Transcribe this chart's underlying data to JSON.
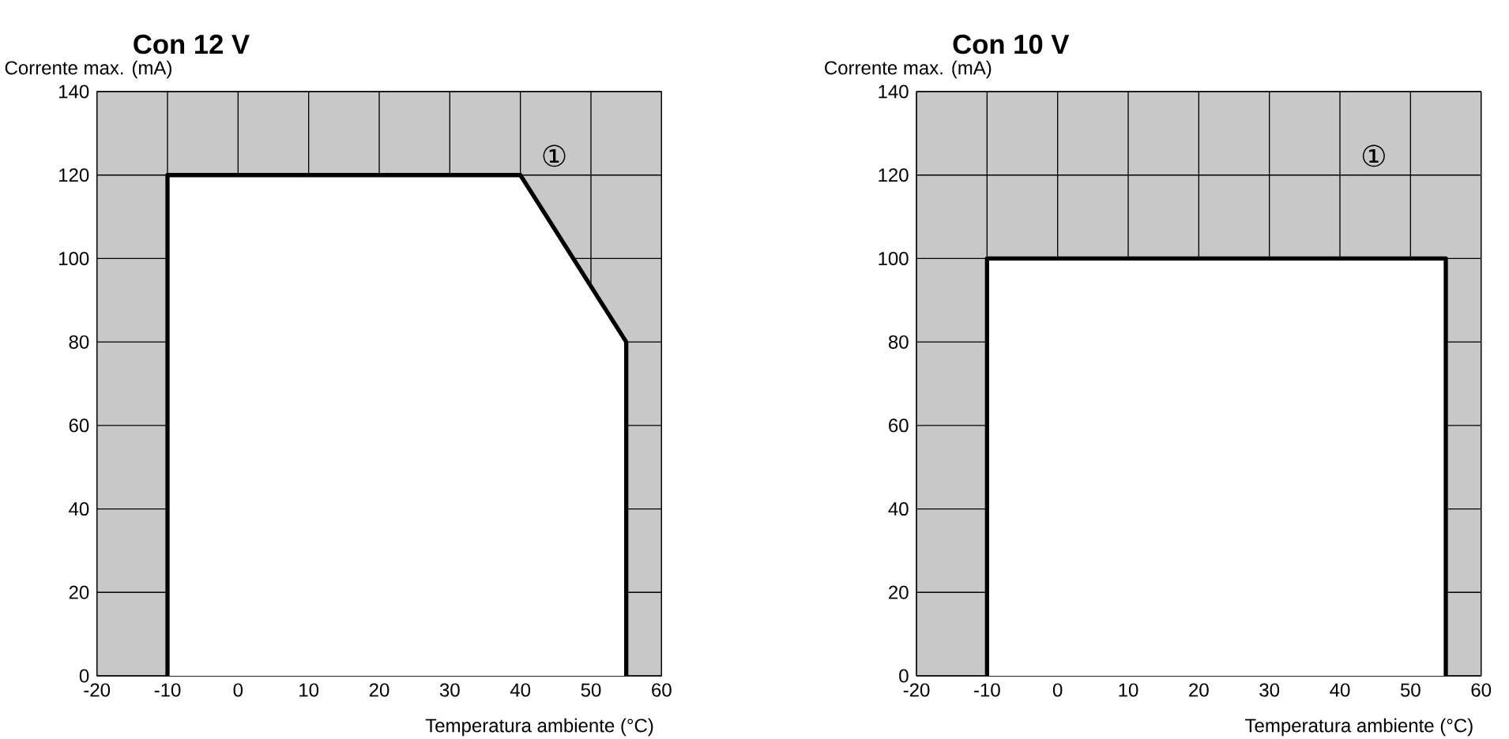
{
  "chart_data": [
    {
      "type": "line",
      "title": "Con 12 V",
      "xlabel": "Temperatura ambiente (°C)",
      "ylabel": "Corrente max. (mA)",
      "x": [
        -10,
        -10,
        40,
        55,
        55
      ],
      "series": [
        {
          "color": "#000000",
          "values": [
            0,
            120,
            120,
            80,
            0
          ]
        }
      ],
      "xlim": [
        -20,
        60
      ],
      "ylim": [
        0,
        140
      ],
      "xticks": [
        -20,
        -10,
        0,
        10,
        20,
        30,
        40,
        50,
        60
      ],
      "yticks": [
        0,
        20,
        40,
        60,
        80,
        100,
        120,
        140
      ],
      "grid": true,
      "annotations": [
        "①"
      ]
    },
    {
      "type": "line",
      "title": "Con 10 V",
      "xlabel": "Temperatura ambiente (°C)",
      "ylabel": "Corrente max. (mA)",
      "x": [
        -10,
        -10,
        55,
        55
      ],
      "series": [
        {
          "color": "#000000",
          "values": [
            0,
            100,
            100,
            0
          ]
        }
      ],
      "xlim": [
        -20,
        60
      ],
      "ylim": [
        0,
        140
      ],
      "xticks": [
        -20,
        -10,
        0,
        10,
        20,
        30,
        40,
        50,
        60
      ],
      "yticks": [
        0,
        20,
        40,
        60,
        80,
        100,
        120,
        140
      ],
      "grid": true,
      "annotations": [
        "①"
      ]
    }
  ]
}
